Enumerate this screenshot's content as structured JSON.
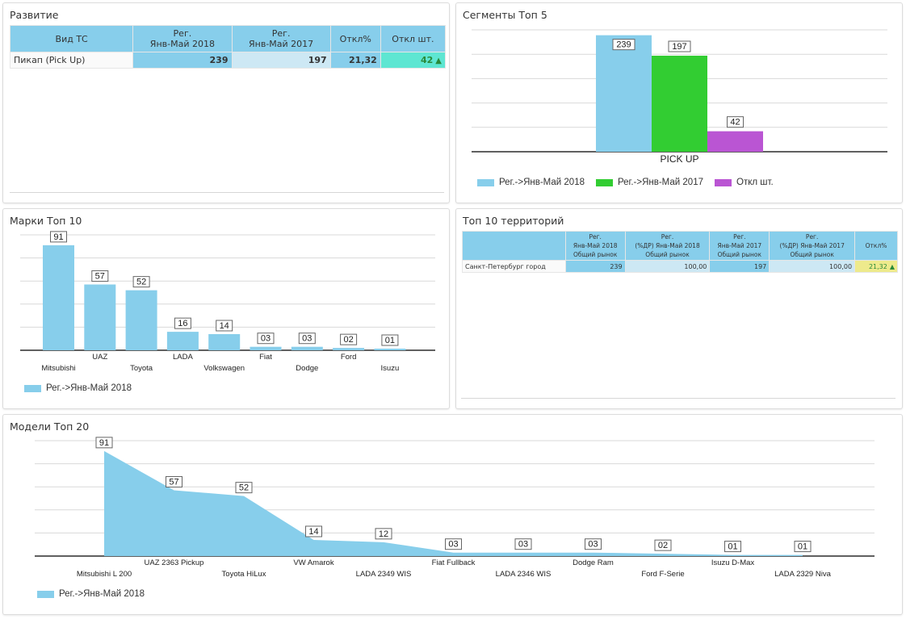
{
  "panels": {
    "development": {
      "title": "Развитие",
      "columns": [
        "Вид ТС",
        "Рег.\nЯнв-Май 2018",
        "Рег.\nЯнв-Май 2017",
        "Откл%",
        "Откл шт."
      ],
      "rows": [
        {
          "type": "Пикап (Pick Up)",
          "reg2018": "239",
          "reg2017": "197",
          "dev_pct": "21,32",
          "dev_units": "42",
          "trend": "up"
        }
      ]
    },
    "segments": {
      "title": "Сегменты Топ 5"
    },
    "brands": {
      "title": "Марки Топ 10"
    },
    "territories": {
      "title": "Топ 10 территорий",
      "columns": [
        "",
        "Рег.\nЯнв-Май 2018\nОбщий рынок",
        "Рег.\n(%ДР) Янв-Май 2018\nОбщий рынок",
        "Рег.\nЯнв-Май 2017\nОбщий рынок",
        "Рег.\n(%ДР) Янв-Май 2017\nОбщий рынок",
        "Откл%"
      ],
      "rows": [
        {
          "name": "Санкт-Петербург город",
          "reg2018": "239",
          "share2018": "100,00",
          "reg2017": "197",
          "share2017": "100,00",
          "dev_pct": "21,32",
          "trend": "up"
        }
      ]
    },
    "models": {
      "title": "Модели Топ 20"
    }
  },
  "icons": {
    "trend_up": "▲"
  },
  "colors": {
    "header_blue": "#87ceeb",
    "light_blue": "#cde8f4",
    "teal": "#5ee6d2",
    "yellow": "#eeea8c",
    "green_text": "#2a8a3a",
    "series_2018": "#87ceeb",
    "series_2017": "#32cd32",
    "series_dev": "#ba55d3"
  },
  "chart_data": [
    {
      "id": "segments",
      "type": "bar",
      "title": "Сегменты Топ 5",
      "categories": [
        "PICK UP"
      ],
      "series": [
        {
          "name": "Рег.->Янв-Май 2018",
          "values": [
            239
          ],
          "labels": [
            "239"
          ],
          "color": "#87ceeb"
        },
        {
          "name": "Рег.->Янв-Май 2017",
          "values": [
            197
          ],
          "labels": [
            "197"
          ],
          "color": "#32cd32"
        },
        {
          "name": "Откл шт.",
          "values": [
            42
          ],
          "labels": [
            "42"
          ],
          "color": "#ba55d3"
        }
      ],
      "ylim": [
        0,
        250
      ],
      "grid": true,
      "legend": "bottom-left"
    },
    {
      "id": "brands",
      "type": "bar",
      "title": "Марки Топ 10",
      "categories": [
        "Mitsubishi",
        "UAZ",
        "Toyota",
        "LADA",
        "Volkswagen",
        "Fiat",
        "Dodge",
        "Ford",
        "Isuzu"
      ],
      "series": [
        {
          "name": "Рег.->Янв-Май 2018",
          "values": [
            91,
            57,
            52,
            16,
            14,
            3,
            3,
            2,
            1
          ],
          "labels": [
            "91",
            "57",
            "52",
            "16",
            "14",
            "03",
            "03",
            "02",
            "01"
          ],
          "color": "#87ceeb"
        }
      ],
      "ylim": [
        0,
        100
      ],
      "grid": true,
      "legend": "bottom-left"
    },
    {
      "id": "models",
      "type": "area",
      "title": "Модели Топ 20",
      "categories": [
        "Mitsubishi L 200",
        "UAZ 2363 Pickup",
        "Toyota HiLux",
        "VW Amarok",
        "LADA 2349 WIS",
        "Fiat Fullback",
        "LADA 2346 WIS",
        "Dodge Ram",
        "Ford F-Serie",
        "Isuzu D-Max",
        "LADA 2329 Niva"
      ],
      "series": [
        {
          "name": "Рег.->Янв-Май 2018",
          "values": [
            91,
            57,
            52,
            14,
            12,
            3,
            3,
            3,
            2,
            1,
            1
          ],
          "labels": [
            "91",
            "57",
            "52",
            "14",
            "12",
            "03",
            "03",
            "03",
            "02",
            "01",
            "01"
          ],
          "color": "#87ceeb"
        }
      ],
      "ylim": [
        0,
        100
      ],
      "grid": true,
      "legend": "bottom-left"
    }
  ]
}
